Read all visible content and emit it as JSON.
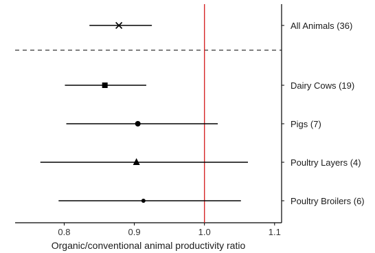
{
  "chart_data": {
    "type": "forest",
    "title": "",
    "xlabel": "Organic/conventional animal productivity ratio",
    "ylabel": "",
    "xlim": [
      0.73,
      1.11
    ],
    "x_ticks": [
      "0.8",
      "0.9",
      "1.0",
      "1.1"
    ],
    "x_tick_values": [
      0.8,
      0.9,
      1.0,
      1.1
    ],
    "reference_line": {
      "x": 1.0,
      "color": "#d62728"
    },
    "separator_after_row": 0,
    "grid": false,
    "rows": [
      {
        "label": "All Animals (36)",
        "estimate": 0.878,
        "lower": 0.836,
        "upper": 0.925,
        "marker": "cross"
      },
      {
        "label": "Dairy Cows (19)",
        "estimate": 0.858,
        "lower": 0.801,
        "upper": 0.917,
        "marker": "square"
      },
      {
        "label": "Pigs (7)",
        "estimate": 0.905,
        "lower": 0.803,
        "upper": 1.019,
        "marker": "circle"
      },
      {
        "label": "Poultry Layers (4)",
        "estimate": 0.903,
        "lower": 0.766,
        "upper": 1.062,
        "marker": "triangle"
      },
      {
        "label": "Poultry Broilers (6)",
        "estimate": 0.913,
        "lower": 0.792,
        "upper": 1.052,
        "marker": "circle-small"
      }
    ],
    "colors": {
      "marks": "#000000",
      "axis": "#000000",
      "separator": "#000000"
    }
  }
}
